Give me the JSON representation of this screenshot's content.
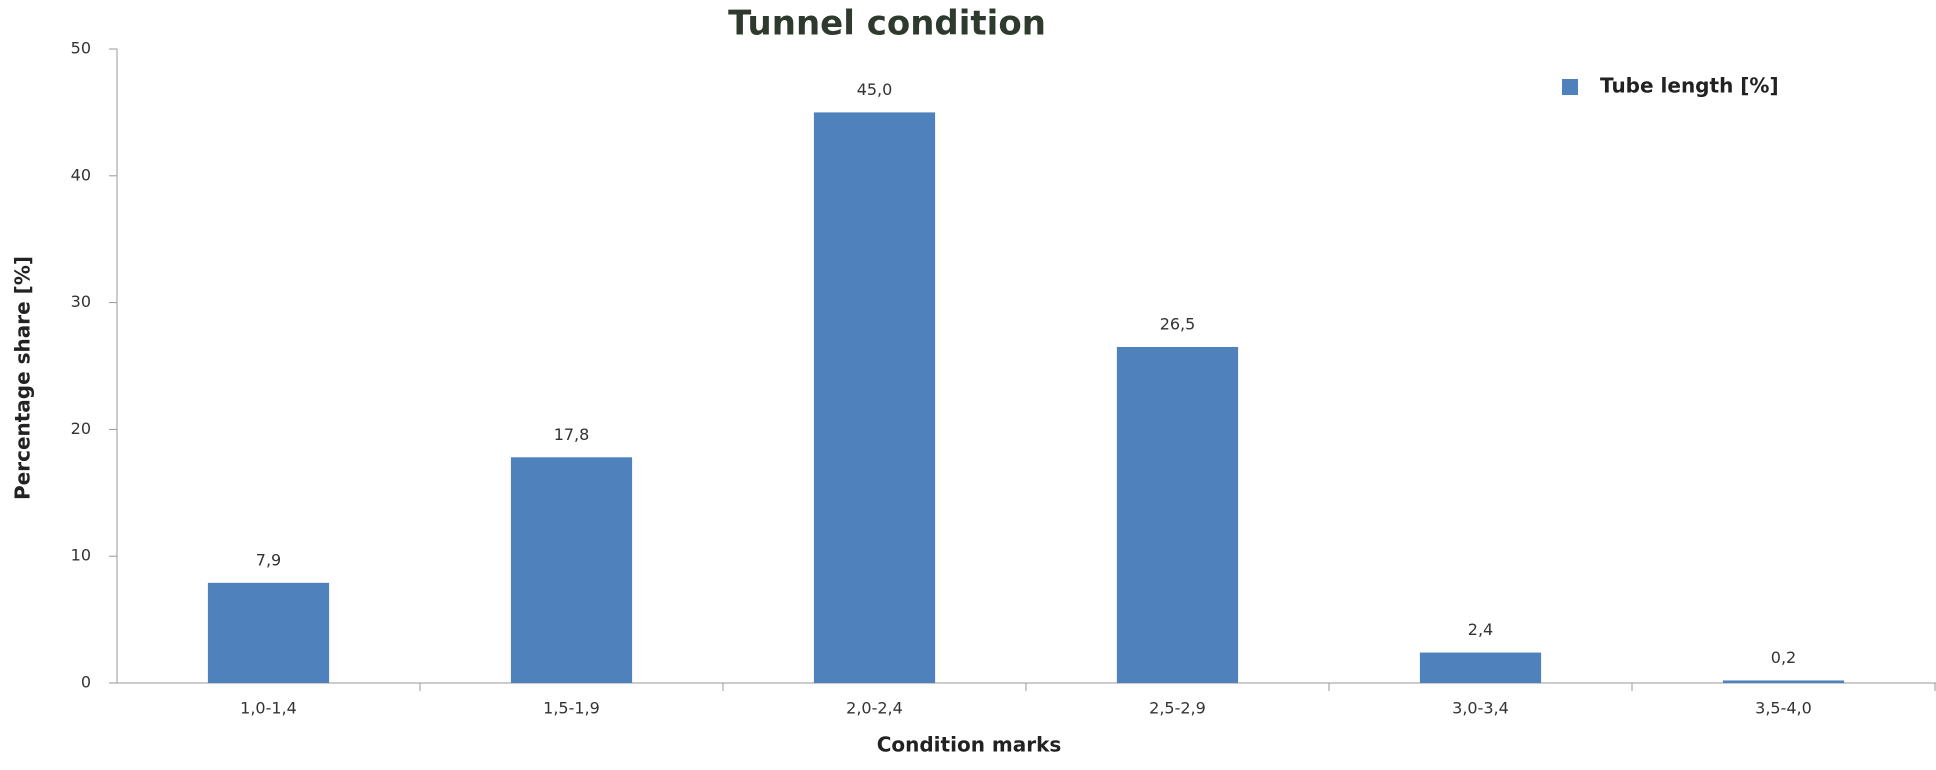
{
  "chart_data": {
    "type": "bar",
    "title": "Tunnel condition",
    "xlabel": "Condition marks",
    "ylabel": "Percentage share [%]",
    "categories": [
      "1,0-1,4",
      "1,5-1,9",
      "2,0-2,4",
      "2,5-2,9",
      "3,0-3,4",
      "3,5-4,0"
    ],
    "series": [
      {
        "name": "Tube length [%]",
        "color": "#4f81bd",
        "values": [
          7.9,
          17.8,
          45.0,
          26.5,
          2.4,
          0.2
        ],
        "value_labels": [
          "7,9",
          "17,8",
          "45,0",
          "26,5",
          "2,4",
          "0,2"
        ]
      }
    ],
    "ylim": [
      0,
      50
    ],
    "yticks": [
      0,
      10,
      20,
      30,
      40,
      50
    ],
    "grid": false,
    "legend": "upper right"
  }
}
